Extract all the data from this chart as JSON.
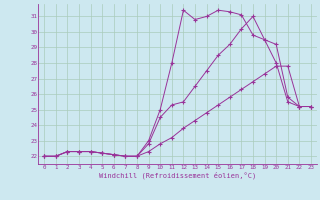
{
  "xlabel": "Windchill (Refroidissement éolien,°C)",
  "background_color": "#cde8f0",
  "line_color": "#993399",
  "grid_color": "#aaccbb",
  "xlim": [
    -0.5,
    23.5
  ],
  "ylim": [
    21.5,
    31.8
  ],
  "yticks": [
    22,
    23,
    24,
    25,
    26,
    27,
    28,
    29,
    30,
    31
  ],
  "xticks": [
    0,
    1,
    2,
    3,
    4,
    5,
    6,
    7,
    8,
    9,
    10,
    11,
    12,
    13,
    14,
    15,
    16,
    17,
    18,
    19,
    20,
    21,
    22,
    23
  ],
  "line1_y": [
    22,
    22,
    22.3,
    22.3,
    22.3,
    22.2,
    22.1,
    22.0,
    22.0,
    23.0,
    25.0,
    28.0,
    31.4,
    30.8,
    31.0,
    31.4,
    31.3,
    31.1,
    29.8,
    29.5,
    28.0,
    25.5,
    25.2,
    25.2
  ],
  "line2_y": [
    22,
    22,
    22.3,
    22.3,
    22.3,
    22.2,
    22.1,
    22.0,
    22.0,
    22.8,
    24.5,
    25.3,
    25.5,
    26.5,
    27.5,
    28.5,
    29.2,
    30.2,
    31.0,
    29.5,
    29.2,
    25.8,
    25.2,
    25.2
  ],
  "line3_y": [
    22,
    22,
    22.3,
    22.3,
    22.3,
    22.2,
    22.1,
    22.0,
    22.0,
    22.3,
    22.8,
    23.2,
    23.8,
    24.3,
    24.8,
    25.3,
    25.8,
    26.3,
    26.8,
    27.3,
    27.8,
    27.8,
    25.2,
    25.2
  ]
}
